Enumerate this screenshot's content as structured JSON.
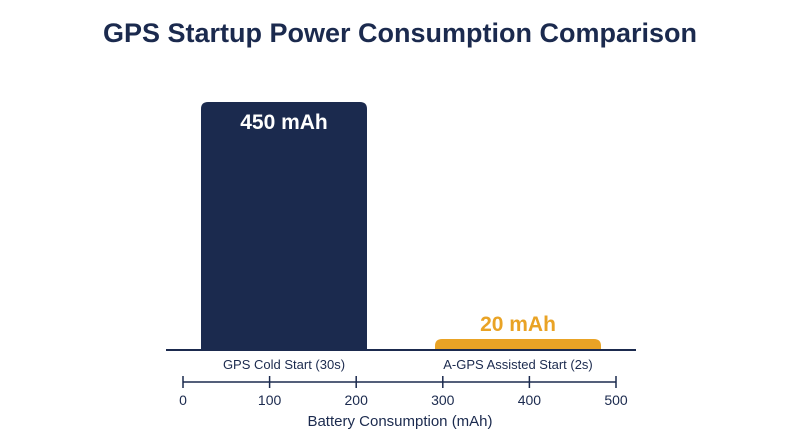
{
  "chart_data": {
    "type": "bar",
    "title": "GPS Startup Power Consumption Comparison",
    "categories": [
      "GPS Cold Start (30s)",
      "A-GPS Assisted Start (2s)"
    ],
    "values": [
      450,
      20
    ],
    "value_labels": [
      "450 mAh",
      "20 mAh"
    ],
    "bar_colors": [
      "#1b2a4e",
      "#e9a325"
    ],
    "xlabel": "Battery Consumption (mAh)",
    "ylabel": "",
    "xlim": [
      0,
      500
    ],
    "ticks": [
      0,
      100,
      200,
      300,
      400,
      500
    ],
    "grid": false,
    "legend": "none"
  },
  "colors": {
    "axis": "#1b2a4e",
    "text": "#1b2a4e"
  }
}
